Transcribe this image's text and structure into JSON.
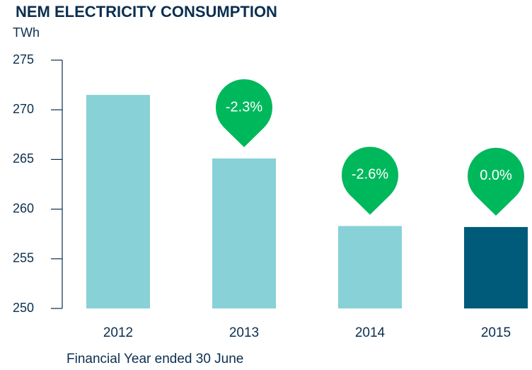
{
  "chart_data": {
    "type": "bar",
    "title": "NEM ELECTRICITY CONSUMPTION",
    "y_label": "TWh",
    "x_label": "Financial Year ended 30 June",
    "categories": [
      "2012",
      "2013",
      "2014",
      "2015"
    ],
    "values": [
      271.5,
      265.1,
      258.3,
      258.2
    ],
    "colors": [
      "#88d1d6",
      "#88d1d6",
      "#88d1d6",
      "#005a7a"
    ],
    "ylim": [
      250,
      275
    ],
    "yticks": [
      250,
      255,
      260,
      265,
      270,
      275
    ],
    "annotations": [
      {
        "category": "2013",
        "text": "-2.3%"
      },
      {
        "category": "2014",
        "text": "-2.6%"
      },
      {
        "category": "2015",
        "text": "0.0%"
      }
    ],
    "annotation_color": "#00b85c"
  }
}
